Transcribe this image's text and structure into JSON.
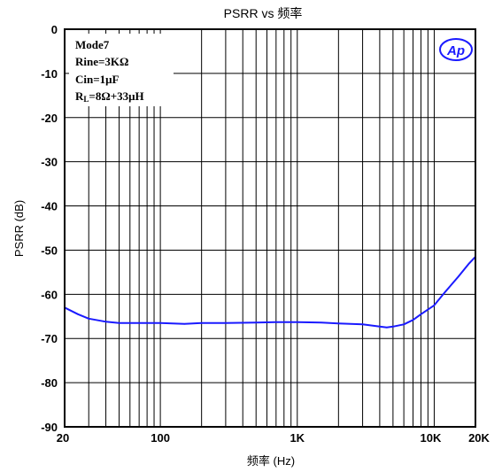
{
  "chart_data": {
    "type": "line",
    "title": "PSRR vs 频率",
    "xlabel": "频率 (Hz)",
    "ylabel": "PSRR (dB)",
    "xscale": "log",
    "xlim": [
      20,
      20000
    ],
    "ylim": [
      -90,
      0
    ],
    "x_tick_labels": [
      {
        "value": 20,
        "label": "20"
      },
      {
        "value": 100,
        "label": "100"
      },
      {
        "value": 1000,
        "label": "1K"
      },
      {
        "value": 10000,
        "label": "10K"
      },
      {
        "value": 20000,
        "label": "20K"
      }
    ],
    "y_ticks": [
      0,
      -10,
      -20,
      -30,
      -40,
      -50,
      -60,
      -70,
      -80,
      -90
    ],
    "grid": true,
    "annotations": [
      "Mode7",
      "Rine=3KΩ",
      "Cin=1μF",
      "R",
      "L",
      "=8Ω+33μH"
    ],
    "logo": "Ap",
    "series": [
      {
        "color": "#1a1aff",
        "x": [
          20,
          25,
          30,
          40,
          50,
          60,
          80,
          100,
          150,
          200,
          300,
          500,
          700,
          1000,
          1500,
          2000,
          3000,
          4000,
          4500,
          5000,
          6000,
          7000,
          8000,
          10000,
          12000,
          15000,
          18000,
          20000
        ],
        "y": [
          -63.0,
          -64.5,
          -65.5,
          -66.2,
          -66.5,
          -66.5,
          -66.5,
          -66.5,
          -66.7,
          -66.5,
          -66.5,
          -66.4,
          -66.3,
          -66.3,
          -66.4,
          -66.6,
          -66.8,
          -67.3,
          -67.5,
          -67.3,
          -66.8,
          -65.8,
          -64.5,
          -62.5,
          -59.5,
          -56.0,
          -53.0,
          -51.5
        ]
      }
    ]
  }
}
